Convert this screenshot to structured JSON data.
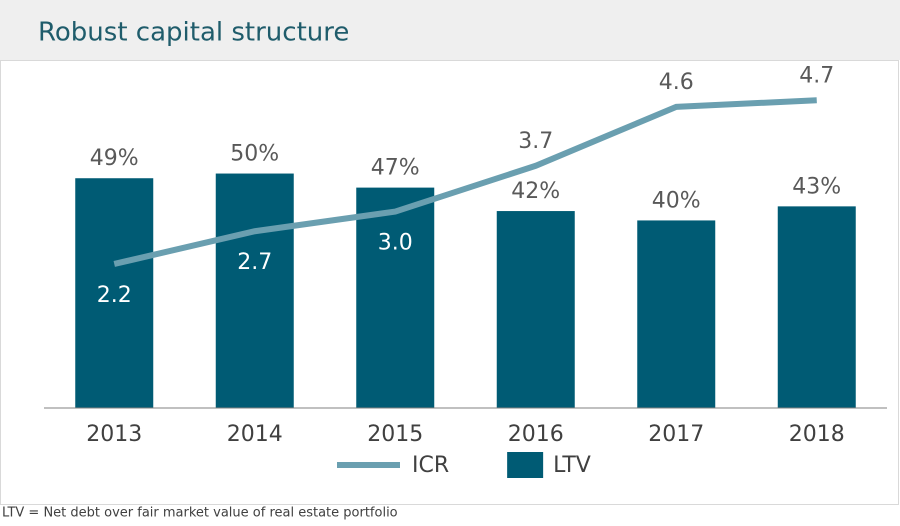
{
  "chart_data": {
    "type": "bar",
    "title": "Robust capital structure",
    "categories": [
      "2013",
      "2014",
      "2015",
      "2016",
      "2017",
      "2018"
    ],
    "series": [
      {
        "name": "ICR",
        "type": "line",
        "axis": "y2",
        "color": "#6a9fb0",
        "values": [
          2.2,
          2.7,
          3.0,
          3.7,
          4.6,
          4.7
        ],
        "value_labels": [
          "2.2",
          "2.7",
          "3.0",
          "3.7",
          "4.6",
          "4.7"
        ]
      },
      {
        "name": "LTV",
        "type": "bar",
        "color": "#005b74",
        "values": [
          49,
          50,
          47,
          42,
          40,
          43
        ],
        "value_labels": [
          "49%",
          "50%",
          "47%",
          "42%",
          "40%",
          "43%"
        ]
      }
    ],
    "ylim": [
      0,
      74
    ],
    "y2lim": [
      0,
      5.3
    ],
    "footnote": "LTV = Net debt over fair market value of real estate portfolio"
  }
}
